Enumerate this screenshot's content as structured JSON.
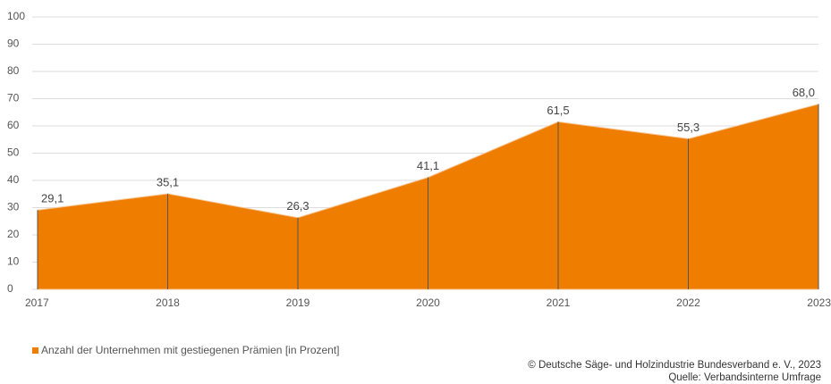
{
  "chart_data": {
    "type": "area",
    "categories": [
      "2017",
      "2018",
      "2019",
      "2020",
      "2021",
      "2022",
      "2023"
    ],
    "series": [
      {
        "name": "Anzahl der Unternehmen mit gestiegenen Prämien [in Prozent]",
        "color": "#ef7d00",
        "values": [
          29.1,
          35.1,
          26.3,
          41.1,
          61.5,
          55.3,
          68.0
        ],
        "value_labels": [
          "29,1",
          "35,1",
          "26,3",
          "41,1",
          "61,5",
          "55,3",
          "68,0"
        ]
      }
    ],
    "ylim": [
      0,
      100
    ],
    "yticks": [
      0,
      10,
      20,
      30,
      40,
      50,
      60,
      70,
      80,
      90,
      100
    ],
    "grid": true,
    "source": [
      "© Deutsche Säge- und Holzindustrie Bundesverband e. V., 2023",
      "Quelle: Verbandsinterne Umfrage"
    ]
  }
}
